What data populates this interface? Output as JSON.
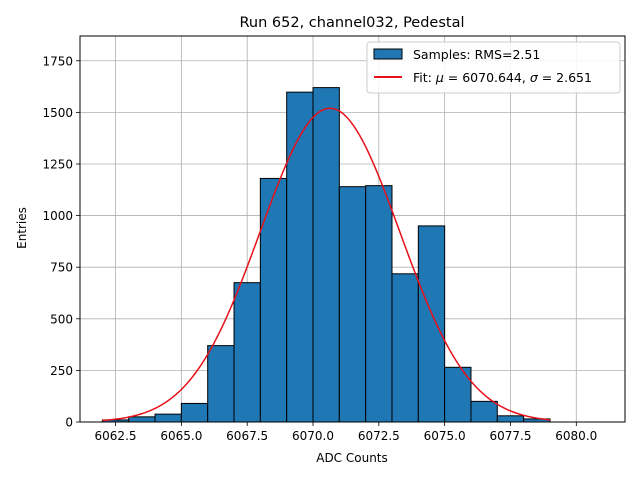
{
  "chart_data": {
    "type": "bar",
    "title": "Run 652, channel032, Pedestal",
    "xlabel": "ADC Counts",
    "ylabel": "Entries",
    "xlim": [
      6061.15,
      6081.85
    ],
    "ylim": [
      0,
      1870
    ],
    "xticks": [
      6062.5,
      6065.0,
      6067.5,
      6070.0,
      6072.5,
      6075.0,
      6077.5,
      6080.0
    ],
    "xtick_labels": [
      "6062.5",
      "6065.0",
      "6067.5",
      "6070.0",
      "6072.5",
      "6075.0",
      "6077.5",
      "6080.0"
    ],
    "yticks": [
      0,
      250,
      500,
      750,
      1000,
      1250,
      1500,
      1750
    ],
    "ytick_labels": [
      "0",
      "250",
      "500",
      "750",
      "1000",
      "1250",
      "1500",
      "1750"
    ],
    "grid": true,
    "bar_color": "#1f77b4",
    "fit_color": "#e8101a",
    "bins": [
      {
        "left": 6062,
        "right": 6063,
        "count": 10
      },
      {
        "left": 6063,
        "right": 6064,
        "count": 25
      },
      {
        "left": 6064,
        "right": 6065,
        "count": 38
      },
      {
        "left": 6065,
        "right": 6066,
        "count": 90
      },
      {
        "left": 6066,
        "right": 6067,
        "count": 370
      },
      {
        "left": 6067,
        "right": 6068,
        "count": 675
      },
      {
        "left": 6068,
        "right": 6069,
        "count": 1180
      },
      {
        "left": 6069,
        "right": 6070,
        "count": 1598
      },
      {
        "left": 6070,
        "right": 6071,
        "count": 1620
      },
      {
        "left": 6071,
        "right": 6072,
        "count": 1140
      },
      {
        "left": 6072,
        "right": 6073,
        "count": 1145
      },
      {
        "left": 6073,
        "right": 6074,
        "count": 718
      },
      {
        "left": 6074,
        "right": 6075,
        "count": 950
      },
      {
        "left": 6075,
        "right": 6076,
        "count": 265
      },
      {
        "left": 6076,
        "right": 6077,
        "count": 100
      },
      {
        "left": 6077,
        "right": 6078,
        "count": 30
      },
      {
        "left": 6078,
        "right": 6079,
        "count": 15
      }
    ],
    "fit": {
      "mu": 6070.644,
      "sigma": 2.651,
      "amplitude": 1520,
      "x_range": [
        6062,
        6079
      ]
    },
    "legend": {
      "position": "upper-right",
      "entries": [
        {
          "type": "patch",
          "label": "Samples: RMS=2.51"
        },
        {
          "type": "line",
          "label_prefix": "Fit: ",
          "mu_symbol": "μ",
          "mu_text": " = 6070.644, ",
          "sigma_symbol": "σ",
          "sigma_text": " = 2.651"
        }
      ]
    }
  }
}
